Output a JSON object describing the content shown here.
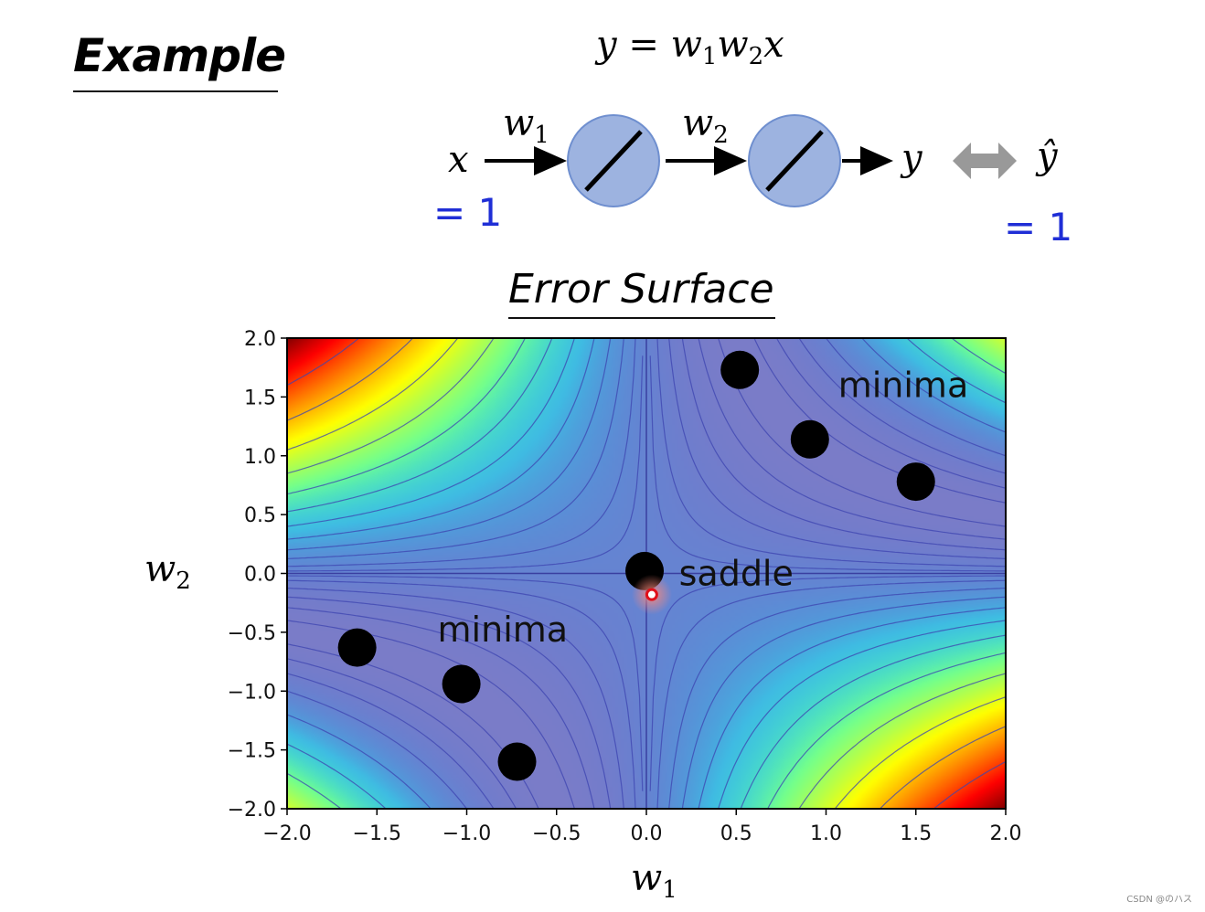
{
  "header": {
    "title": "Example",
    "formula": {
      "lhs": "y",
      "eq": "=",
      "w1": "w",
      "w1_sub": "1",
      "w2": "w",
      "w2_sub": "2",
      "x": "x"
    }
  },
  "network": {
    "input_label": "x",
    "input_value": "= 1",
    "weight1": "w",
    "weight1_sub": "1",
    "weight2": "w",
    "weight2_sub": "2",
    "output_label": "y",
    "target_label": "ŷ",
    "target_value": "= 1",
    "neuron_color": "#9db3e0",
    "arrow_color": "#999999"
  },
  "surface_title": "Error Surface",
  "chart_data": {
    "type": "contour",
    "title": "",
    "xlabel": "w",
    "xlabel_sub": "1",
    "ylabel": "w",
    "ylabel_sub": "2",
    "xlim": [
      -2.0,
      2.0
    ],
    "ylim": [
      -2.0,
      2.0
    ],
    "xticks": [
      "−2.0",
      "−1.5",
      "−1.0",
      "−0.5",
      "0.0",
      "0.5",
      "1.0",
      "1.5",
      "2.0"
    ],
    "yticks": [
      "2.0",
      "1.5",
      "1.0",
      "0.5",
      "0.0",
      "−0.5",
      "−1.0",
      "−1.5",
      "−2.0"
    ],
    "function": "(1 - w1*w2)^2",
    "minima_points": [
      {
        "x": 0.52,
        "y": 1.73
      },
      {
        "x": 0.91,
        "y": 1.14
      },
      {
        "x": 1.5,
        "y": 0.78
      },
      {
        "x": -1.61,
        "y": -0.63
      },
      {
        "x": -1.03,
        "y": -0.94
      },
      {
        "x": -0.72,
        "y": -1.6
      }
    ],
    "saddle_point": {
      "x": -0.01,
      "y": 0.02
    },
    "current_point": {
      "x": 0.03,
      "y": -0.18
    },
    "annotations": [
      {
        "text": "minima",
        "x": 1.43,
        "y": 1.5
      },
      {
        "text": "minima",
        "x": -0.8,
        "y": -0.58
      },
      {
        "text": "saddle",
        "x": 0.5,
        "y": -0.1
      }
    ]
  },
  "watermark": "CSDN @のハス"
}
